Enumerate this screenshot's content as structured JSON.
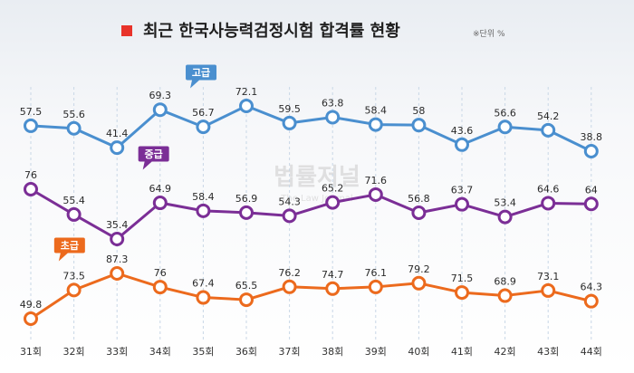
{
  "title": "최근 한국사능력검정시험 합격률 현황",
  "unit_note": "※단위 %",
  "watermark": "법률저널",
  "watermark_sub": "The Law Journal",
  "colors": {
    "title_bullet": "#e8332a",
    "goggeup": "#4a8fcf",
    "junggeup": "#7b2e96",
    "chogeup": "#ec6a1d",
    "background_top": "#eef1f5",
    "gridline": "#c9d7e6"
  },
  "chart_data": {
    "type": "line",
    "title": "최근 한국사능력검정시험 합격률 현황",
    "unit": "%",
    "categories": [
      "31회",
      "32회",
      "33회",
      "34회",
      "35회",
      "36회",
      "37회",
      "38회",
      "39회",
      "40회",
      "41회",
      "42회",
      "43회",
      "44회"
    ],
    "grid": "vertical dashed lines at each category",
    "series": [
      {
        "name": "고급",
        "color": "#4a8fcf",
        "values": [
          57.5,
          55.6,
          41.4,
          69.3,
          56.7,
          72.1,
          59.5,
          63.8,
          58.4,
          58,
          43.6,
          56.6,
          54.2,
          38.8
        ]
      },
      {
        "name": "중급",
        "color": "#7b2e96",
        "values": [
          76,
          55.4,
          35.4,
          64.9,
          58.4,
          56.9,
          54.3,
          65.2,
          71.6,
          56.8,
          63.7,
          53.4,
          64.6,
          64
        ]
      },
      {
        "name": "초급",
        "color": "#ec6a1d",
        "values": [
          49.8,
          73.5,
          87.3,
          76,
          67.4,
          65.5,
          76.2,
          74.7,
          76.1,
          79.2,
          71.5,
          68.9,
          73.1,
          64.3
        ]
      }
    ]
  }
}
